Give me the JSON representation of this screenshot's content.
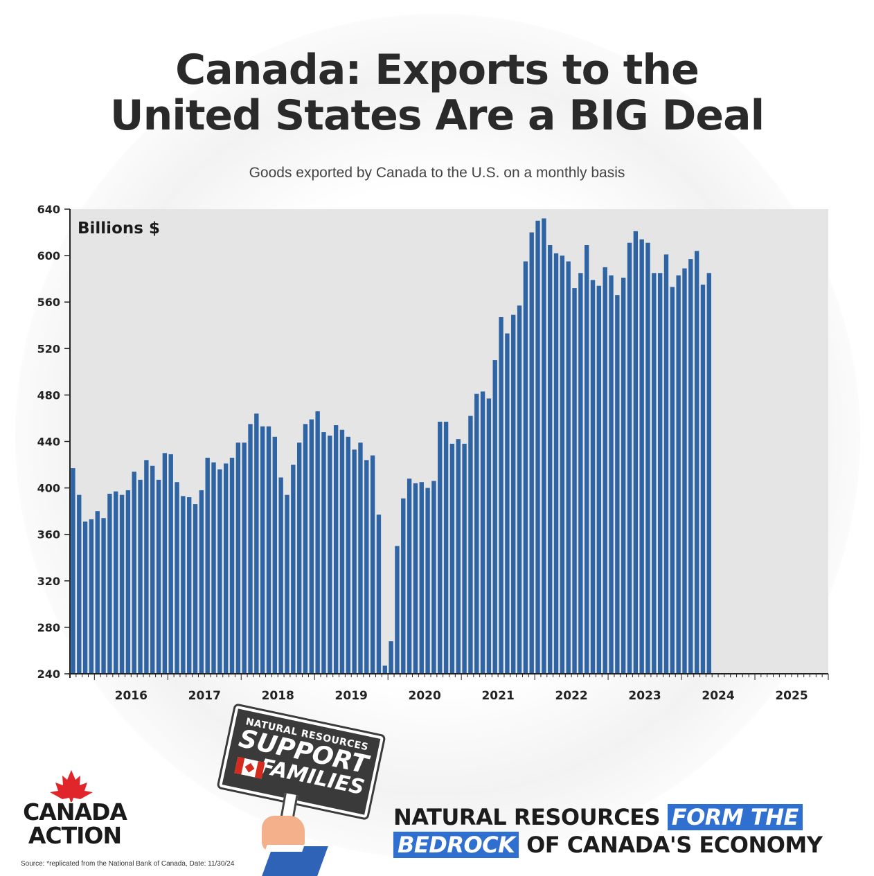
{
  "header": {
    "title_line1": "Canada: Exports to the",
    "title_line2": "United States Are a BIG Deal",
    "subtitle": "Goods exported by Canada to the U.S. on a monthly basis"
  },
  "chart_data": {
    "type": "bar",
    "unit_label": "Billions $",
    "yticks": [
      240,
      280,
      320,
      360,
      400,
      440,
      480,
      520,
      560,
      600,
      640
    ],
    "ylim": [
      240,
      640
    ],
    "xtick_labels": [
      "2016",
      "2017",
      "2018",
      "2019",
      "2020",
      "2021",
      "2022",
      "2023",
      "2024",
      "2025"
    ],
    "period_start": "2015-09",
    "values": [
      417,
      394,
      371,
      373,
      380,
      374,
      395,
      397,
      394,
      398,
      414,
      407,
      424,
      419,
      407,
      430,
      429,
      405,
      393,
      392,
      386,
      398,
      426,
      422,
      416,
      421,
      426,
      439,
      439,
      455,
      464,
      453,
      453,
      444,
      409,
      394,
      420,
      439,
      455,
      459,
      466,
      448,
      445,
      454,
      450,
      444,
      433,
      439,
      424,
      428,
      377,
      247,
      268,
      350,
      391,
      408,
      404,
      405,
      400,
      406,
      457,
      457,
      438,
      442,
      438,
      462,
      481,
      483,
      477,
      510,
      547,
      533,
      549,
      557,
      595,
      620,
      630,
      632,
      609,
      602,
      600,
      595,
      572,
      585,
      609,
      579,
      574,
      590,
      583,
      566,
      581,
      611,
      621,
      614,
      611,
      585,
      585,
      601,
      573,
      583,
      589,
      597,
      604,
      575,
      585
    ],
    "bar_color": "#2e64a3",
    "plot_bg": "#e5e5e5",
    "grid": false
  },
  "sign": {
    "line1": "NATURAL RESOURCES",
    "line2": "SUPPORT",
    "line3": "FAMILIES"
  },
  "logo": {
    "line1": "CANADA",
    "line2": "ACTION",
    "leaf_color": "#e0262b"
  },
  "tagline": {
    "part1": "NATURAL RESOURCES",
    "highlight1": "FORM THE",
    "highlight2": "BEDROCK",
    "part2": "OF CANADA'S ECONOMY",
    "highlight_color": "#2f6fd0"
  },
  "source": "Source: *replicated from the National Bank of Canada, Date: 11/30/24"
}
